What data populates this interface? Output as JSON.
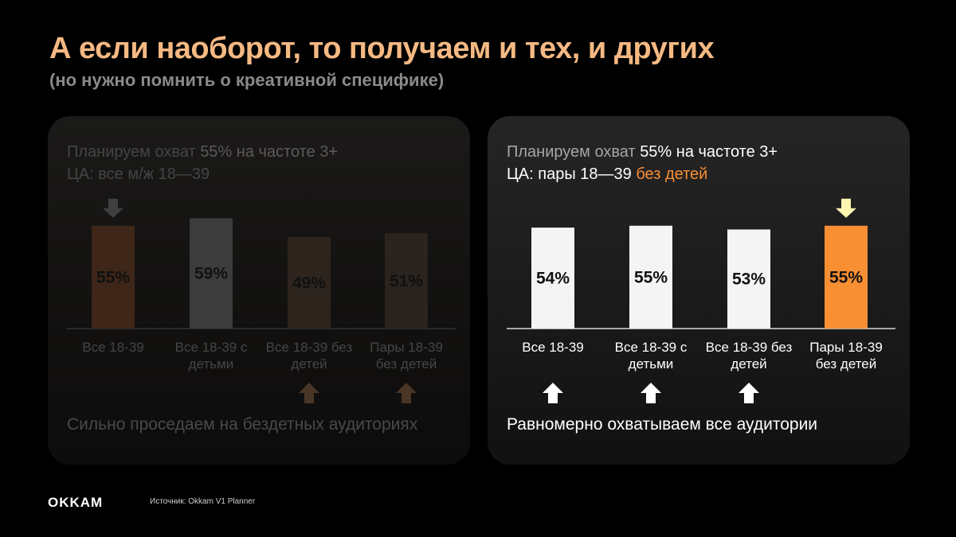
{
  "title": "А если наоборот, то получаем и тех, и других",
  "subtitle": "(но нужно помнить о креативной специфике)",
  "left_panel": {
    "line1_pre": "Планируем охват ",
    "line1_hl": "55% на частоте 3+",
    "line2_pre": "ЦА: все м/ж 18—39",
    "line2_hl": "",
    "footnote": "Сильно проседаем на бездетных аудиториях",
    "highlight_arrow_down": "arrow-down-icon",
    "bottom_arrows": "arrow-up-icon"
  },
  "right_panel": {
    "line1_pre": "Планируем охват ",
    "line1_hl": "55% на частоте 3+",
    "line2_pre": "ЦА: пары 18—39 ",
    "line2_hl": "без детей",
    "footnote": "Равномерно охватываем все аудитории",
    "highlight_arrow_down": "arrow-down-icon",
    "bottom_arrows": "arrow-up-icon"
  },
  "chart_data": [
    {
      "type": "bar",
      "categories": [
        "Все 18-39",
        "Все 18-39 с детьми",
        "Все 18-39 без детей",
        "Пары 18-39 без детей"
      ],
      "category_lines": [
        [
          "Все 18-39"
        ],
        [
          "Все 18-39 с",
          "детьми"
        ],
        [
          "Все 18-39 без",
          "детей"
        ],
        [
          "Пары 18-39",
          "без детей"
        ]
      ],
      "values": [
        55,
        59,
        49,
        51
      ],
      "value_labels": [
        "55%",
        "59%",
        "49%",
        "51%"
      ],
      "bar_colors": [
        "#3e2618",
        "#3c3c3c",
        "#2d241d",
        "#2a231e"
      ],
      "label_color": "#111111",
      "highlight_index": 0,
      "up_arrow_indices": [
        2,
        3
      ],
      "ylim": [
        0,
        100
      ]
    },
    {
      "type": "bar",
      "categories": [
        "Все 18-39",
        "Все 18-39 с детьми",
        "Все 18-39 без детей",
        "Пары 18-39 без детей"
      ],
      "category_lines": [
        [
          "Все 18-39"
        ],
        [
          "Все 18-39 с",
          "детьми"
        ],
        [
          "Все 18-39 без",
          "детей"
        ],
        [
          "Пары 18-39",
          "без детей"
        ]
      ],
      "values": [
        54,
        55,
        53,
        55
      ],
      "value_labels": [
        "54%",
        "55%",
        "53%",
        "55%"
      ],
      "bar_colors": [
        "#f4f4f4",
        "#f4f4f4",
        "#f4f4f4",
        "#f98f33"
      ],
      "label_color": "#111111",
      "highlight_index": 3,
      "up_arrow_indices": [
        0,
        1,
        2
      ],
      "ylim": [
        0,
        100
      ]
    }
  ],
  "colors": {
    "title": "#f6b983",
    "accent": "#f98f33",
    "highlight_arrow_left": "#3f3f3f",
    "highlight_arrow_right": "#fff6b0",
    "up_arrow_left": "#4a3626",
    "up_arrow_right": "#ffffff",
    "axis_left": "#3a3a3a",
    "axis_right": "#ffffff"
  },
  "footer": {
    "logo": "OKKAM",
    "source": "Источник: Okkam V1 Planner"
  }
}
